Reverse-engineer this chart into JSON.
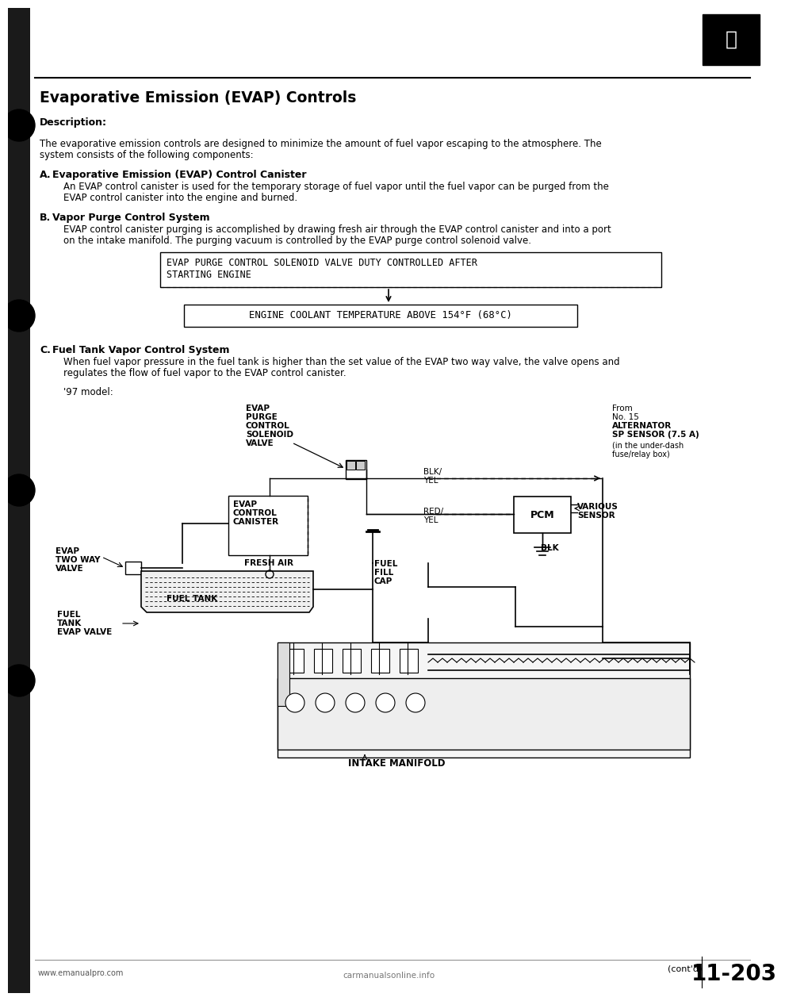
{
  "page_title": "Evaporative Emission (EVAP) Controls",
  "description_label": "Description:",
  "intro_line1": "The evaporative emission controls are designed to minimize the amount of fuel vapor escaping to the atmosphere. The",
  "intro_line2": "system consists of the following components:",
  "sA_letter": "A.",
  "sA_title": "Evaporative Emission (EVAP) Control Canister",
  "sA_line1": "An EVAP control canister is used for the temporary storage of fuel vapor until the fuel vapor can be purged from the",
  "sA_line2": "EVAP control canister into the engine and burned.",
  "sB_letter": "B.",
  "sB_title": "Vapor Purge Control System",
  "sB_line1": "EVAP control canister purging is accomplished by drawing fresh air through the EVAP control canister and into a port",
  "sB_line2": "on the intake manifold. The purging vacuum is controlled by the EVAP purge control solenoid valve.",
  "box1_line1": "EVAP PURGE CONTROL SOLENOID VALVE DUTY CONTROLLED AFTER",
  "box1_line2": "STARTING ENGINE",
  "box2_text": "ENGINE COOLANT TEMPERATURE ABOVE 154°F (68°C)",
  "sC_letter": "C.",
  "sC_title": "Fuel Tank Vapor Control System",
  "sC_line1": "When fuel vapor pressure in the fuel tank is higher than the set value of the EVAP two way valve, the valve opens and",
  "sC_line2": "regulates the flow of fuel vapor to the EVAP control canister.",
  "model_label": "'97 model:",
  "footer_left": "www.emanualpro.com",
  "footer_page": "11-203",
  "footer_watermark": "carmanualsonline.info",
  "footer_contd": "(cont'd)",
  "bg": "#ffffff",
  "black": "#000000",
  "gray_strip": "#1a1a1a",
  "mid_gray": "#888888"
}
